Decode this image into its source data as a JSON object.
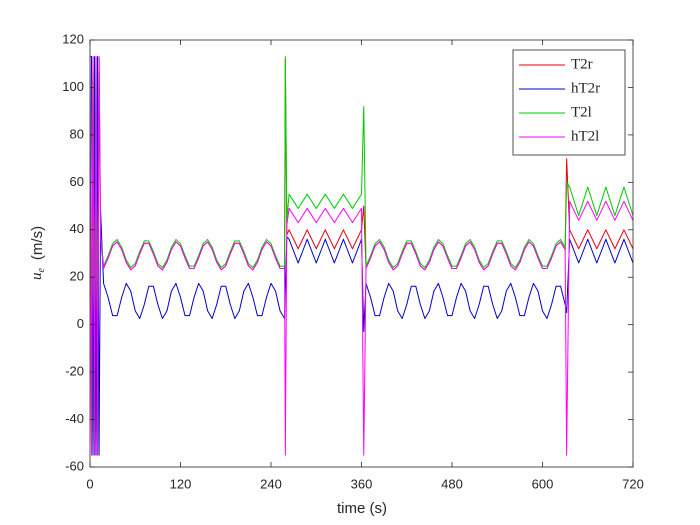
{
  "chart_data": {
    "type": "line",
    "xlabel": "time (s)",
    "ylabel": {
      "symbol": "u",
      "subscript": "e",
      "unit": "(m/s)"
    },
    "xlim": [
      0,
      720
    ],
    "xticks": [
      0,
      120,
      240,
      360,
      480,
      600,
      720
    ],
    "ylim": [
      -60,
      120
    ],
    "yticks": [
      -60,
      -40,
      -20,
      0,
      20,
      40,
      60,
      80,
      100,
      120
    ],
    "legend": "top-right",
    "x": [
      0,
      2,
      4,
      6,
      8,
      10,
      12,
      14,
      18,
      24,
      30,
      36,
      42,
      48,
      54,
      60,
      66,
      72,
      78,
      84,
      90,
      96,
      102,
      108,
      114,
      120,
      126,
      132,
      138,
      144,
      150,
      156,
      162,
      168,
      174,
      180,
      186,
      192,
      198,
      204,
      210,
      216,
      222,
      228,
      234,
      240,
      246,
      252,
      258,
      259,
      261,
      264,
      270,
      276,
      282,
      288,
      294,
      300,
      306,
      312,
      318,
      324,
      330,
      336,
      342,
      348,
      354,
      360,
      363,
      366,
      372,
      378,
      384,
      390,
      396,
      402,
      408,
      414,
      420,
      426,
      432,
      438,
      444,
      450,
      456,
      462,
      468,
      474,
      480,
      486,
      492,
      498,
      504,
      510,
      516,
      522,
      528,
      534,
      540,
      546,
      552,
      558,
      564,
      570,
      576,
      582,
      588,
      594,
      600,
      606,
      612,
      618,
      624,
      630,
      632,
      636,
      642,
      648,
      654,
      660,
      666,
      672,
      678,
      684,
      690,
      696,
      702,
      708,
      714,
      720
    ],
    "series": [
      {
        "name": "T2r",
        "color": "#e8000b",
        "values": [
          113,
          -55,
          113,
          -55,
          113,
          -55,
          113,
          40,
          23.7,
          28.1,
          33.2,
          34.9,
          31.7,
          26.3,
          23.1,
          24.8,
          29.9,
          34.3,
          34.3,
          29.9,
          24.8,
          23.1,
          26.3,
          31.7,
          34.9,
          33.2,
          28.1,
          23.7,
          23.7,
          28.1,
          33.2,
          34.9,
          31.7,
          26.3,
          23.1,
          24.8,
          29.9,
          34.3,
          34.3,
          29.9,
          24.8,
          23.1,
          26.3,
          31.7,
          34.9,
          33.2,
          28.1,
          23.7,
          23.7,
          112,
          38,
          40,
          36,
          32,
          36,
          40,
          36,
          32,
          36,
          40,
          36,
          32,
          36,
          40,
          36,
          32,
          36,
          40,
          50,
          23.7,
          28.1,
          33.2,
          34.9,
          31.7,
          26.3,
          23.1,
          24.8,
          29.9,
          34.3,
          34.3,
          29.9,
          24.8,
          23.1,
          26.3,
          31.7,
          34.9,
          33.2,
          28.1,
          23.7,
          23.7,
          28.1,
          33.2,
          34.9,
          31.7,
          26.3,
          23.1,
          24.8,
          29.9,
          34.3,
          34.3,
          29.9,
          24.8,
          23.1,
          26.3,
          31.7,
          34.9,
          33.2,
          28.1,
          23.7,
          23.7,
          28.1,
          33.2,
          34.9,
          31.7,
          70,
          40,
          36,
          32,
          36,
          40,
          36,
          32,
          36,
          40,
          36,
          32,
          36,
          40,
          36,
          32
        ]
      },
      {
        "name": "hT2r",
        "color": "#0000c8",
        "values": [
          113,
          113,
          -55,
          113,
          -55,
          113,
          -55,
          48,
          17.4,
          11.5,
          3.8,
          3.8,
          11.5,
          17.4,
          14.2,
          5.8,
          2.6,
          8.5,
          16.2,
          16.2,
          8.5,
          2.6,
          5.8,
          14.2,
          17.4,
          11.5,
          3.8,
          3.8,
          11.5,
          17.4,
          14.2,
          5.8,
          2.6,
          8.5,
          16.2,
          16.2,
          8.5,
          2.6,
          5.8,
          14.2,
          17.4,
          11.5,
          3.8,
          3.8,
          11.5,
          17.4,
          14.2,
          5.8,
          2.6,
          15,
          37,
          36,
          31,
          26,
          31,
          36,
          31,
          26,
          31,
          36,
          31,
          26,
          31,
          36,
          31,
          26,
          31,
          36,
          -3,
          17.4,
          11.5,
          3.8,
          3.8,
          11.5,
          17.4,
          14.2,
          5.8,
          2.6,
          8.5,
          16.2,
          16.2,
          8.5,
          2.6,
          5.8,
          14.2,
          17.4,
          11.5,
          3.8,
          3.8,
          11.5,
          17.4,
          14.2,
          5.8,
          2.6,
          8.5,
          16.2,
          16.2,
          8.5,
          2.6,
          5.8,
          14.2,
          17.4,
          11.5,
          3.8,
          3.8,
          11.5,
          17.4,
          14.2,
          5.8,
          2.6,
          8.5,
          16.2,
          16.2,
          8.5,
          5,
          36,
          31,
          26,
          31,
          36,
          31,
          26,
          31,
          36,
          31,
          26,
          31,
          36,
          31,
          26
        ]
      },
      {
        "name": "T2l",
        "color": "#00cc00",
        "values": [
          113,
          -55,
          113,
          -55,
          113,
          -55,
          113,
          38,
          24.7,
          29.1,
          34.2,
          35.9,
          32.7,
          27.3,
          24.1,
          25.8,
          30.9,
          35.3,
          35.3,
          30.9,
          25.8,
          24.1,
          27.3,
          32.7,
          35.9,
          34.2,
          29.1,
          24.7,
          24.7,
          29.1,
          34.2,
          35.9,
          32.7,
          27.3,
          24.1,
          25.8,
          30.9,
          35.3,
          35.3,
          30.9,
          25.8,
          24.1,
          27.3,
          32.7,
          35.9,
          34.2,
          29.1,
          24.7,
          24.7,
          113,
          44,
          55,
          52,
          49,
          52,
          55,
          52,
          49,
          52,
          55,
          52,
          49,
          52,
          55,
          52,
          49,
          52,
          55,
          92,
          24.7,
          29.1,
          34.2,
          35.9,
          32.7,
          27.3,
          24.1,
          25.8,
          30.9,
          35.3,
          35.3,
          30.9,
          25.8,
          24.1,
          27.3,
          32.7,
          35.9,
          34.2,
          29.1,
          24.7,
          24.7,
          29.1,
          34.2,
          35.9,
          32.7,
          27.3,
          24.1,
          25.8,
          30.9,
          35.3,
          35.3,
          30.9,
          25.8,
          24.1,
          27.3,
          32.7,
          35.9,
          34.2,
          29.1,
          24.7,
          24.7,
          29.1,
          34.2,
          35.9,
          32.7,
          60,
          58,
          52,
          46,
          52,
          58,
          52,
          46,
          52,
          58,
          52,
          46,
          52,
          58,
          52,
          46
        ]
      },
      {
        "name": "hT2l",
        "color": "#ff00ff",
        "values": [
          113,
          -55,
          113,
          -55,
          113,
          -55,
          113,
          36,
          23.7,
          28.1,
          33.2,
          34.9,
          31.7,
          26.3,
          23.1,
          24.8,
          29.9,
          34.3,
          34.3,
          29.9,
          24.8,
          23.1,
          26.3,
          31.7,
          34.9,
          33.2,
          28.1,
          23.7,
          23.7,
          28.1,
          33.2,
          34.9,
          31.7,
          26.3,
          23.1,
          24.8,
          29.9,
          34.3,
          34.3,
          29.9,
          24.8,
          23.1,
          26.3,
          31.7,
          34.9,
          33.2,
          28.1,
          23.7,
          23.7,
          -55,
          42,
          49,
          46,
          43,
          46,
          49,
          46,
          43,
          46,
          49,
          46,
          43,
          46,
          49,
          46,
          43,
          46,
          49,
          -55,
          23.7,
          28.1,
          33.2,
          34.9,
          31.7,
          26.3,
          23.1,
          24.8,
          29.9,
          34.3,
          34.3,
          29.9,
          24.8,
          23.1,
          26.3,
          31.7,
          34.9,
          33.2,
          28.1,
          23.7,
          23.7,
          28.1,
          33.2,
          34.9,
          31.7,
          26.3,
          23.1,
          24.8,
          29.9,
          34.3,
          34.3,
          29.9,
          24.8,
          23.1,
          26.3,
          31.7,
          34.9,
          33.2,
          28.1,
          23.7,
          23.7,
          28.1,
          33.2,
          34.9,
          31.7,
          -55,
          52,
          48,
          44,
          48,
          52,
          48,
          44,
          48,
          52,
          48,
          44,
          48,
          52,
          48,
          44
        ]
      }
    ]
  }
}
